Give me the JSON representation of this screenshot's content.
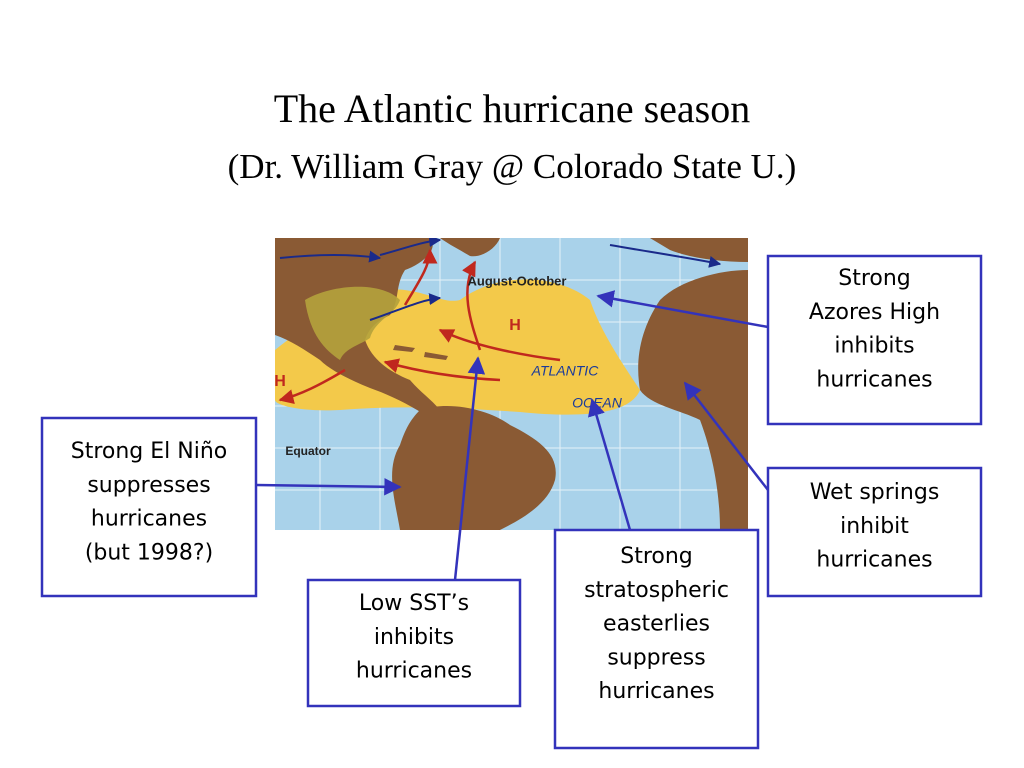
{
  "slide": {
    "title": "The Atlantic hurricane season",
    "subtitle": "(Dr. William Gray @ Colorado State U.)",
    "map": {
      "labels": [
        "August-October",
        "H",
        "H",
        "ATLANTIC",
        "OCEAN",
        "Equator"
      ]
    },
    "callouts": [
      {
        "lines": [
          "Strong",
          "Azores High",
          "inhibits",
          "hurricanes"
        ]
      },
      {
        "lines": [
          "Strong El Niño",
          "suppresses",
          "hurricanes",
          "(but 1998?)"
        ]
      },
      {
        "lines": [
          "Wet springs",
          "inhibit",
          "hurricanes"
        ]
      },
      {
        "lines": [
          "Low SST’s",
          "inhibits",
          "hurricanes"
        ]
      },
      {
        "lines": [
          "Strong",
          "stratospheric",
          "easterlies",
          "suppress",
          "hurricanes"
        ]
      }
    ]
  }
}
